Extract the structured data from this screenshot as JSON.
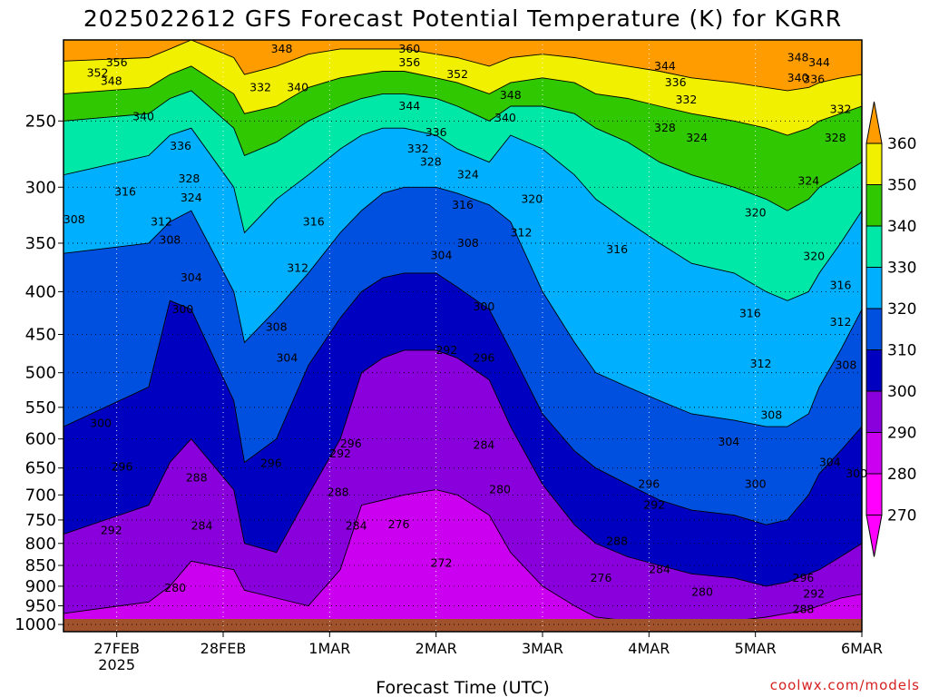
{
  "chart_data": {
    "type": "heatmap",
    "title": "2025022612 GFS Forecast Potential Temperature (K) for KGRR",
    "xlabel": "Forecast Time (UTC)",
    "ylabel": "",
    "x_ticks": [
      {
        "value": 0.5,
        "label": "27FEB",
        "sublabel": "2025"
      },
      {
        "value": 1.5,
        "label": "28FEB",
        "sublabel": ""
      },
      {
        "value": 2.5,
        "label": "1MAR",
        "sublabel": ""
      },
      {
        "value": 3.5,
        "label": "2MAR",
        "sublabel": ""
      },
      {
        "value": 4.5,
        "label": "3MAR",
        "sublabel": ""
      },
      {
        "value": 5.5,
        "label": "4MAR",
        "sublabel": ""
      },
      {
        "value": 6.5,
        "label": "5MAR",
        "sublabel": ""
      },
      {
        "value": 7.5,
        "label": "6MAR",
        "sublabel": ""
      }
    ],
    "xlim": [
      0,
      7.5
    ],
    "y_ticks": [
      250,
      300,
      350,
      400,
      450,
      500,
      550,
      600,
      650,
      700,
      750,
      800,
      850,
      900,
      950,
      1000
    ],
    "ylim": [
      1020,
      200
    ],
    "y_scale": "log",
    "grid": true,
    "colorbar": {
      "levels": [
        270,
        280,
        290,
        300,
        310,
        320,
        330,
        340,
        350,
        360
      ],
      "colors": [
        "#ff00ff",
        "#cc00f0",
        "#8a00dc",
        "#0000c0",
        "#0050e0",
        "#00b0ff",
        "#00e8a8",
        "#30c800",
        "#f0f000",
        "#ff9c00"
      ],
      "under_color": "#ff00ff",
      "over_color": "#ff9c00",
      "position": "right"
    },
    "series": [
      {
        "level": 270,
        "x": [
          0.0,
          0.8,
          1.0,
          1.2,
          1.6,
          1.7,
          2.0,
          2.3,
          2.6,
          2.8,
          3.0,
          3.2,
          3.5,
          3.7,
          4.0,
          4.2,
          4.5,
          4.8,
          5.0,
          5.3,
          5.6,
          5.9,
          6.3,
          6.6,
          6.8,
          7.0,
          7.1,
          7.3,
          7.5
        ],
        "y": [
          1012,
          1012,
          1012,
          1012,
          1012,
          1012,
          1012,
          1012,
          1012,
          1012,
          1012,
          1012,
          1012,
          1012,
          1012,
          1012,
          1012,
          1012,
          1012,
          1012,
          1012,
          1012,
          1012,
          1012,
          1012,
          1012,
          1012,
          1012,
          1012
        ]
      },
      {
        "level": 280,
        "x": [
          0.0,
          0.8,
          1.0,
          1.2,
          1.6,
          1.7,
          2.0,
          2.3,
          2.6,
          2.8,
          3.0,
          3.2,
          3.5,
          3.7,
          4.0,
          4.2,
          4.5,
          4.8,
          5.0,
          5.3,
          5.6,
          5.9,
          6.3,
          6.6,
          6.8,
          7.0,
          7.1,
          7.3,
          7.5
        ],
        "y": [
          970,
          940,
          900,
          840,
          860,
          910,
          930,
          950,
          860,
          720,
          710,
          700,
          690,
          700,
          740,
          820,
          900,
          950,
          980,
          990,
          1000,
          1000,
          990,
          980,
          970,
          960,
          950,
          930,
          920
        ]
      },
      {
        "level": 290,
        "x": [
          0.0,
          0.8,
          1.0,
          1.2,
          1.6,
          1.7,
          2.0,
          2.3,
          2.6,
          2.8,
          3.0,
          3.2,
          3.5,
          3.7,
          4.0,
          4.2,
          4.5,
          4.8,
          5.0,
          5.3,
          5.6,
          5.9,
          6.3,
          6.6,
          6.8,
          7.0,
          7.1,
          7.3,
          7.5
        ],
        "y": [
          780,
          720,
          640,
          600,
          690,
          800,
          820,
          700,
          600,
          500,
          480,
          470,
          470,
          480,
          510,
          580,
          680,
          760,
          800,
          830,
          850,
          870,
          880,
          900,
          890,
          870,
          860,
          830,
          800
        ]
      },
      {
        "level": 300,
        "x": [
          0.0,
          0.8,
          1.0,
          1.2,
          1.6,
          1.7,
          2.0,
          2.3,
          2.6,
          2.8,
          3.0,
          3.2,
          3.5,
          3.7,
          4.0,
          4.2,
          4.5,
          4.8,
          5.0,
          5.3,
          5.6,
          5.9,
          6.3,
          6.6,
          6.8,
          7.0,
          7.1,
          7.3,
          7.5
        ],
        "y": [
          580,
          520,
          410,
          420,
          540,
          640,
          600,
          490,
          430,
          400,
          385,
          380,
          380,
          395,
          420,
          470,
          560,
          620,
          650,
          680,
          710,
          730,
          740,
          760,
          750,
          700,
          660,
          620,
          580
        ]
      },
      {
        "level": 310,
        "x": [
          0.0,
          0.8,
          1.0,
          1.2,
          1.6,
          1.7,
          2.0,
          2.3,
          2.6,
          2.8,
          3.0,
          3.2,
          3.5,
          3.7,
          4.0,
          4.2,
          4.5,
          4.8,
          5.0,
          5.3,
          5.6,
          5.9,
          6.3,
          6.6,
          6.8,
          7.0,
          7.1,
          7.3,
          7.5
        ],
        "y": [
          360,
          350,
          330,
          320,
          400,
          460,
          420,
          380,
          340,
          320,
          305,
          300,
          300,
          305,
          315,
          330,
          400,
          460,
          500,
          520,
          540,
          560,
          570,
          580,
          580,
          560,
          520,
          470,
          420
        ]
      },
      {
        "level": 320,
        "x": [
          0.0,
          0.8,
          1.0,
          1.2,
          1.6,
          1.7,
          2.0,
          2.3,
          2.6,
          2.8,
          3.0,
          3.2,
          3.5,
          3.7,
          4.0,
          4.2,
          4.5,
          4.8,
          5.0,
          5.3,
          5.6,
          5.9,
          6.3,
          6.6,
          6.8,
          7.0,
          7.1,
          7.3,
          7.5
        ],
        "y": [
          290,
          275,
          260,
          255,
          300,
          340,
          310,
          290,
          270,
          260,
          255,
          255,
          260,
          270,
          280,
          260,
          270,
          290,
          310,
          330,
          350,
          370,
          380,
          400,
          410,
          400,
          380,
          350,
          320
        ]
      },
      {
        "level": 330,
        "x": [
          0.0,
          0.8,
          1.0,
          1.2,
          1.6,
          1.7,
          2.0,
          2.3,
          2.6,
          2.8,
          3.0,
          3.2,
          3.5,
          3.7,
          4.0,
          4.2,
          4.5,
          4.8,
          5.0,
          5.3,
          5.6,
          5.9,
          6.3,
          6.6,
          6.8,
          7.0,
          7.1,
          7.3,
          7.5
        ],
        "y": [
          250,
          245,
          235,
          230,
          255,
          275,
          265,
          250,
          240,
          235,
          232,
          232,
          235,
          240,
          250,
          240,
          240,
          245,
          255,
          265,
          280,
          290,
          300,
          310,
          320,
          310,
          300,
          290,
          280
        ]
      },
      {
        "level": 340,
        "x": [
          0.0,
          0.8,
          1.0,
          1.2,
          1.6,
          1.7,
          2.0,
          2.3,
          2.6,
          2.8,
          3.0,
          3.2,
          3.5,
          3.7,
          4.0,
          4.2,
          4.5,
          4.8,
          5.0,
          5.3,
          5.6,
          5.9,
          6.3,
          6.6,
          6.8,
          7.0,
          7.1,
          7.3,
          7.5
        ],
        "y": [
          232,
          228,
          220,
          215,
          232,
          245,
          240,
          228,
          222,
          220,
          218,
          218,
          222,
          225,
          232,
          225,
          222,
          225,
          232,
          235,
          240,
          245,
          250,
          255,
          260,
          255,
          250,
          245,
          240
        ]
      },
      {
        "level": 350,
        "x": [
          0.0,
          0.8,
          1.0,
          1.2,
          1.6,
          1.7,
          2.0,
          2.3,
          2.6,
          2.8,
          3.0,
          3.2,
          3.5,
          3.7,
          4.0,
          4.2,
          4.5,
          4.8,
          5.0,
          5.3,
          5.6,
          5.9,
          6.3,
          6.6,
          6.8,
          7.0,
          7.1,
          7.3,
          7.5
        ],
        "y": [
          212,
          210,
          205,
          200,
          210,
          220,
          215,
          208,
          205,
          205,
          205,
          205,
          208,
          210,
          215,
          210,
          208,
          210,
          212,
          215,
          218,
          222,
          225,
          228,
          230,
          228,
          225,
          222,
          220
        ]
      },
      {
        "level": 360,
        "x": [
          0.0,
          0.8,
          1.0,
          1.2,
          1.6,
          1.7,
          2.0,
          2.3,
          2.6,
          2.8,
          3.0,
          3.2,
          3.5,
          3.7,
          4.0,
          4.2,
          4.5,
          4.8,
          5.0,
          5.3,
          5.6,
          5.9,
          6.3,
          6.6,
          6.8,
          7.0,
          7.1,
          7.3,
          7.5
        ],
        "y": [
          200,
          200,
          200,
          200,
          200,
          200,
          200,
          200,
          200,
          200,
          200,
          200,
          200,
          200,
          200,
          200,
          200,
          200,
          200,
          200,
          200,
          200,
          200,
          200,
          200,
          200,
          200,
          200,
          200
        ]
      }
    ],
    "contour_labels": [
      {
        "text": "356",
        "x": 0.5,
        "y": 213
      },
      {
        "text": "352",
        "x": 0.32,
        "y": 219
      },
      {
        "text": "348",
        "x": 0.45,
        "y": 224
      },
      {
        "text": "340",
        "x": 0.75,
        "y": 247
      },
      {
        "text": "336",
        "x": 1.1,
        "y": 268
      },
      {
        "text": "328",
        "x": 1.18,
        "y": 293
      },
      {
        "text": "324",
        "x": 1.2,
        "y": 309
      },
      {
        "text": "316",
        "x": 0.58,
        "y": 304
      },
      {
        "text": "312",
        "x": 0.92,
        "y": 330
      },
      {
        "text": "308",
        "x": 0.1,
        "y": 328
      },
      {
        "text": "308",
        "x": 1.0,
        "y": 347
      },
      {
        "text": "304",
        "x": 1.2,
        "y": 385
      },
      {
        "text": "300",
        "x": 1.12,
        "y": 420
      },
      {
        "text": "300",
        "x": 0.35,
        "y": 575
      },
      {
        "text": "296",
        "x": 0.55,
        "y": 648
      },
      {
        "text": "292",
        "x": 0.45,
        "y": 772
      },
      {
        "text": "288",
        "x": 1.25,
        "y": 668
      },
      {
        "text": "284",
        "x": 1.3,
        "y": 762
      },
      {
        "text": "280",
        "x": 1.05,
        "y": 905
      },
      {
        "text": "348",
        "x": 2.05,
        "y": 205
      },
      {
        "text": "332",
        "x": 1.85,
        "y": 228
      },
      {
        "text": "340",
        "x": 2.2,
        "y": 228
      },
      {
        "text": "316",
        "x": 2.35,
        "y": 330
      },
      {
        "text": "312",
        "x": 2.2,
        "y": 375
      },
      {
        "text": "308",
        "x": 2.0,
        "y": 441
      },
      {
        "text": "304",
        "x": 2.1,
        "y": 480
      },
      {
        "text": "296",
        "x": 1.95,
        "y": 642
      },
      {
        "text": "296",
        "x": 2.7,
        "y": 608
      },
      {
        "text": "292",
        "x": 2.6,
        "y": 625
      },
      {
        "text": "288",
        "x": 2.58,
        "y": 695
      },
      {
        "text": "284",
        "x": 2.75,
        "y": 762
      },
      {
        "text": "360",
        "x": 3.25,
        "y": 205
      },
      {
        "text": "356",
        "x": 3.25,
        "y": 213
      },
      {
        "text": "352",
        "x": 3.7,
        "y": 220
      },
      {
        "text": "344",
        "x": 3.25,
        "y": 240
      },
      {
        "text": "348",
        "x": 4.2,
        "y": 233
      },
      {
        "text": "340",
        "x": 4.15,
        "y": 248
      },
      {
        "text": "336",
        "x": 3.5,
        "y": 258
      },
      {
        "text": "332",
        "x": 3.33,
        "y": 270
      },
      {
        "text": "328",
        "x": 3.45,
        "y": 280
      },
      {
        "text": "324",
        "x": 3.8,
        "y": 290
      },
      {
        "text": "320",
        "x": 4.4,
        "y": 310
      },
      {
        "text": "316",
        "x": 3.75,
        "y": 315
      },
      {
        "text": "312",
        "x": 4.3,
        "y": 340
      },
      {
        "text": "308",
        "x": 3.8,
        "y": 350
      },
      {
        "text": "304",
        "x": 3.55,
        "y": 362
      },
      {
        "text": "300",
        "x": 3.95,
        "y": 417
      },
      {
        "text": "292",
        "x": 3.6,
        "y": 470
      },
      {
        "text": "296",
        "x": 3.95,
        "y": 480
      },
      {
        "text": "284",
        "x": 3.95,
        "y": 610
      },
      {
        "text": "280",
        "x": 4.1,
        "y": 690
      },
      {
        "text": "276",
        "x": 3.15,
        "y": 760
      },
      {
        "text": "272",
        "x": 3.55,
        "y": 845
      },
      {
        "text": "276",
        "x": 5.05,
        "y": 880
      },
      {
        "text": "316",
        "x": 5.2,
        "y": 356
      },
      {
        "text": "344",
        "x": 5.65,
        "y": 215
      },
      {
        "text": "336",
        "x": 5.75,
        "y": 225
      },
      {
        "text": "332",
        "x": 5.85,
        "y": 236
      },
      {
        "text": "328",
        "x": 5.65,
        "y": 255
      },
      {
        "text": "324",
        "x": 5.95,
        "y": 262
      },
      {
        "text": "296",
        "x": 5.5,
        "y": 680
      },
      {
        "text": "292",
        "x": 5.55,
        "y": 720
      },
      {
        "text": "288",
        "x": 5.2,
        "y": 795
      },
      {
        "text": "284",
        "x": 5.6,
        "y": 860
      },
      {
        "text": "280",
        "x": 6.0,
        "y": 915
      },
      {
        "text": "320",
        "x": 6.5,
        "y": 322
      },
      {
        "text": "316",
        "x": 6.45,
        "y": 425
      },
      {
        "text": "312",
        "x": 6.55,
        "y": 488
      },
      {
        "text": "308",
        "x": 6.65,
        "y": 562
      },
      {
        "text": "304",
        "x": 6.25,
        "y": 605
      },
      {
        "text": "300",
        "x": 6.5,
        "y": 680
      },
      {
        "text": "348",
        "x": 6.9,
        "y": 210
      },
      {
        "text": "344",
        "x": 7.1,
        "y": 213
      },
      {
        "text": "340",
        "x": 6.9,
        "y": 222
      },
      {
        "text": "336",
        "x": 7.05,
        "y": 223
      },
      {
        "text": "332",
        "x": 7.3,
        "y": 242
      },
      {
        "text": "328",
        "x": 7.25,
        "y": 262
      },
      {
        "text": "324",
        "x": 7.0,
        "y": 295
      },
      {
        "text": "320",
        "x": 7.05,
        "y": 363
      },
      {
        "text": "316",
        "x": 7.3,
        "y": 393
      },
      {
        "text": "312",
        "x": 7.3,
        "y": 435
      },
      {
        "text": "308",
        "x": 7.35,
        "y": 490
      },
      {
        "text": "304",
        "x": 7.2,
        "y": 640
      },
      {
        "text": "300",
        "x": 7.45,
        "y": 660
      },
      {
        "text": "296",
        "x": 6.95,
        "y": 880
      },
      {
        "text": "292",
        "x": 7.05,
        "y": 920
      },
      {
        "text": "288",
        "x": 6.95,
        "y": 960
      }
    ],
    "terrain": {
      "color": "#a0522d",
      "pressure": 985
    }
  },
  "credit": "coolwx.com/models"
}
